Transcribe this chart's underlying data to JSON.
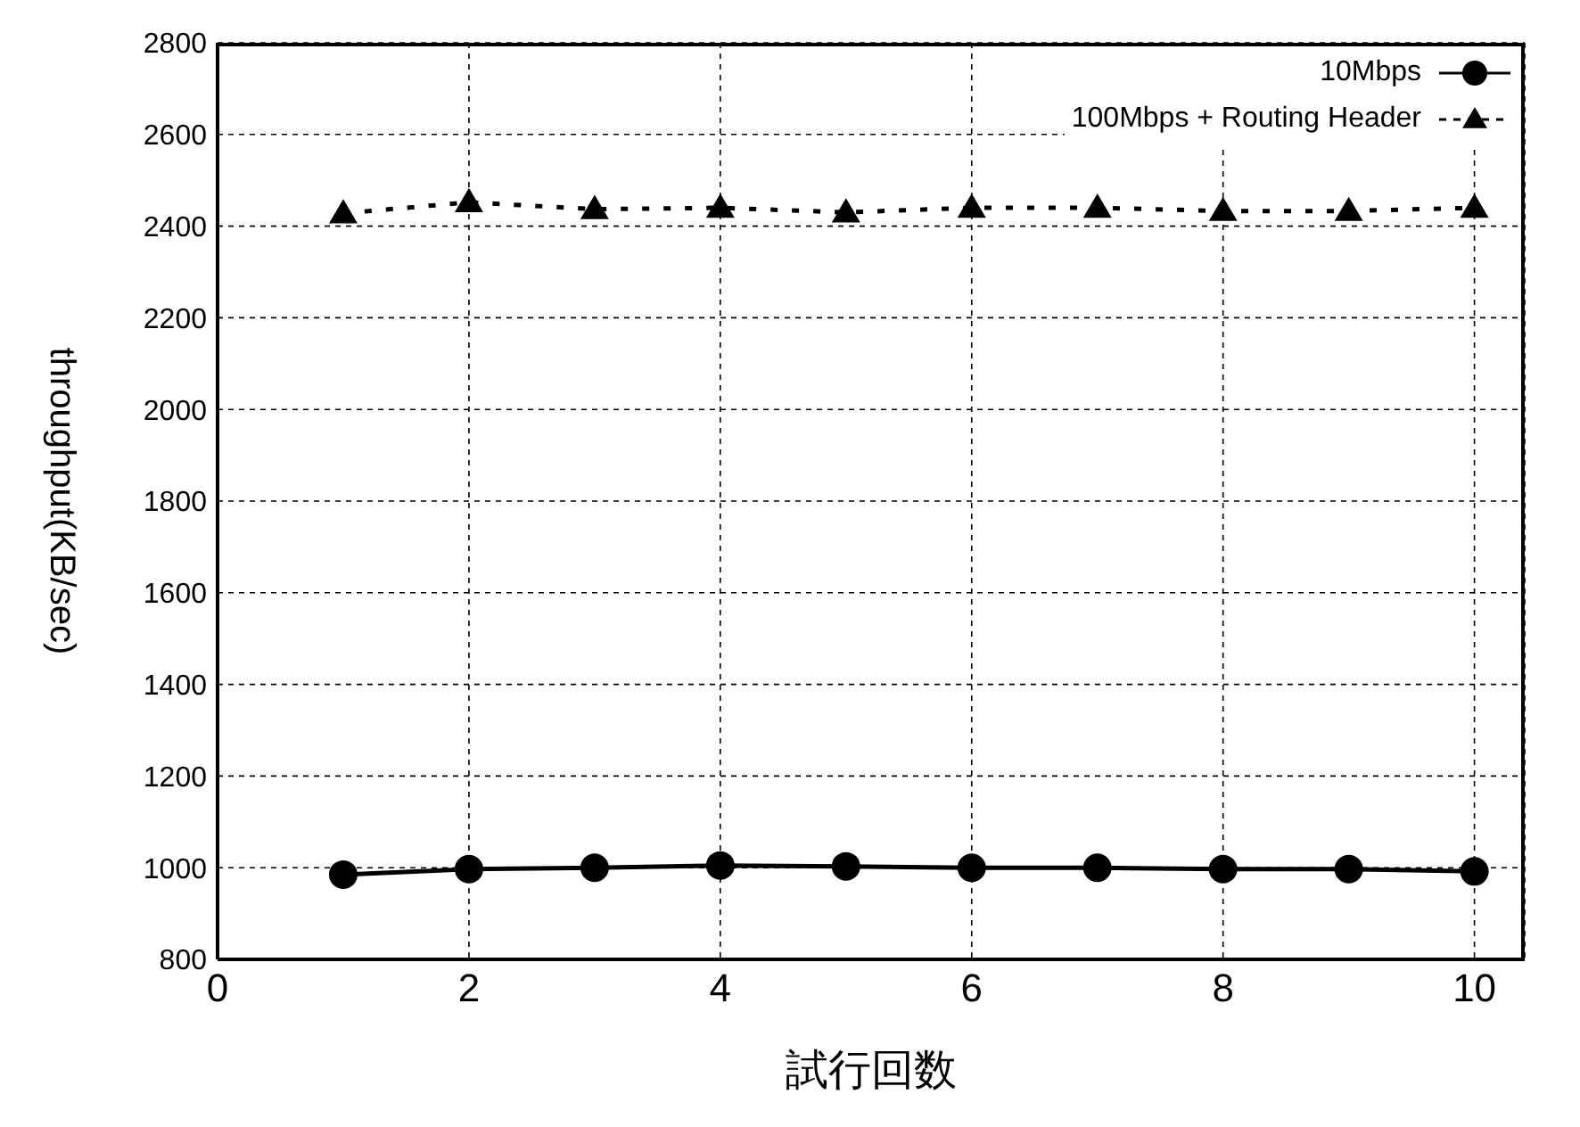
{
  "chart_data": {
    "type": "line",
    "xlabel": "試行回数",
    "ylabel": "throughput(KB/sec)",
    "x": [
      1,
      2,
      3,
      4,
      5,
      6,
      7,
      8,
      9,
      10
    ],
    "series": [
      {
        "name": "10Mbps",
        "color": "#000000",
        "marker": "circle",
        "line_style": "solid",
        "values": [
          985,
          997,
          1000,
          1005,
          1003,
          1000,
          1000,
          997,
          997,
          992
        ]
      },
      {
        "name": "100Mbps + Routing Header",
        "color": "#000000",
        "marker": "triangle",
        "line_style": "dotted",
        "values": [
          2428,
          2452,
          2437,
          2440,
          2430,
          2440,
          2440,
          2433,
          2433,
          2440
        ]
      }
    ],
    "xlim": [
      0,
      10.4
    ],
    "xticks": [
      0,
      2,
      4,
      6,
      8,
      10
    ],
    "ylim": [
      800,
      2800
    ],
    "yticks": [
      800,
      1000,
      1200,
      1400,
      1600,
      1800,
      2000,
      2200,
      2400,
      2600,
      2800
    ],
    "grid": true,
    "legend": "top right"
  }
}
